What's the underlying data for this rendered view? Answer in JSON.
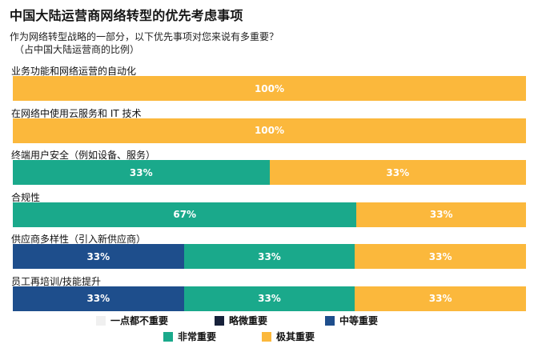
{
  "title": "中国大陆运营商网络转型的优先考虑事项",
  "subtitle_line1": "作为网络转型战略的一部分，以下优先事项对您来说有多重要？",
  "subtitle_line2": "（占中国大陆运营商的比例）",
  "colors": {
    "一点都不重要": "#f0f0f0",
    "略微重要": "#17213a",
    "中等重要": "#1e4e8c",
    "非常重要": "#1aa98b",
    "极其重要": "#fbb83c"
  },
  "chart_data": {
    "type": "bar",
    "orientation": "horizontal",
    "stacked": true,
    "xlim": [
      0,
      100
    ],
    "unit": "%",
    "categories": [
      "业务功能和网络运营的自动化",
      "在网络中使用云服务和 IT 技术",
      "终端用户安全（例如设备、服务）",
      "合规性",
      "供应商多样性（引入新供应商）",
      "员工再培训/技能提升"
    ],
    "series": [
      {
        "name": "一点都不重要",
        "values": [
          0,
          0,
          0,
          0,
          0,
          0
        ]
      },
      {
        "name": "略微重要",
        "values": [
          0,
          0,
          0,
          0,
          0,
          0
        ]
      },
      {
        "name": "中等重要",
        "values": [
          0,
          0,
          0,
          0,
          33,
          33
        ]
      },
      {
        "name": "非常重要",
        "values": [
          0,
          0,
          33,
          67,
          33,
          33
        ]
      },
      {
        "name": "极其重要",
        "values": [
          100,
          100,
          33,
          33,
          33,
          33
        ]
      }
    ],
    "legend": [
      {
        "label": "一点都不重要",
        "color": "#f0f0f0"
      },
      {
        "label": "略微重要",
        "color": "#17213a"
      },
      {
        "label": "中等重要",
        "color": "#1e4e8c"
      },
      {
        "label": "非常重要",
        "color": "#1aa98b"
      },
      {
        "label": "极其重要",
        "color": "#fbb83c"
      }
    ]
  }
}
